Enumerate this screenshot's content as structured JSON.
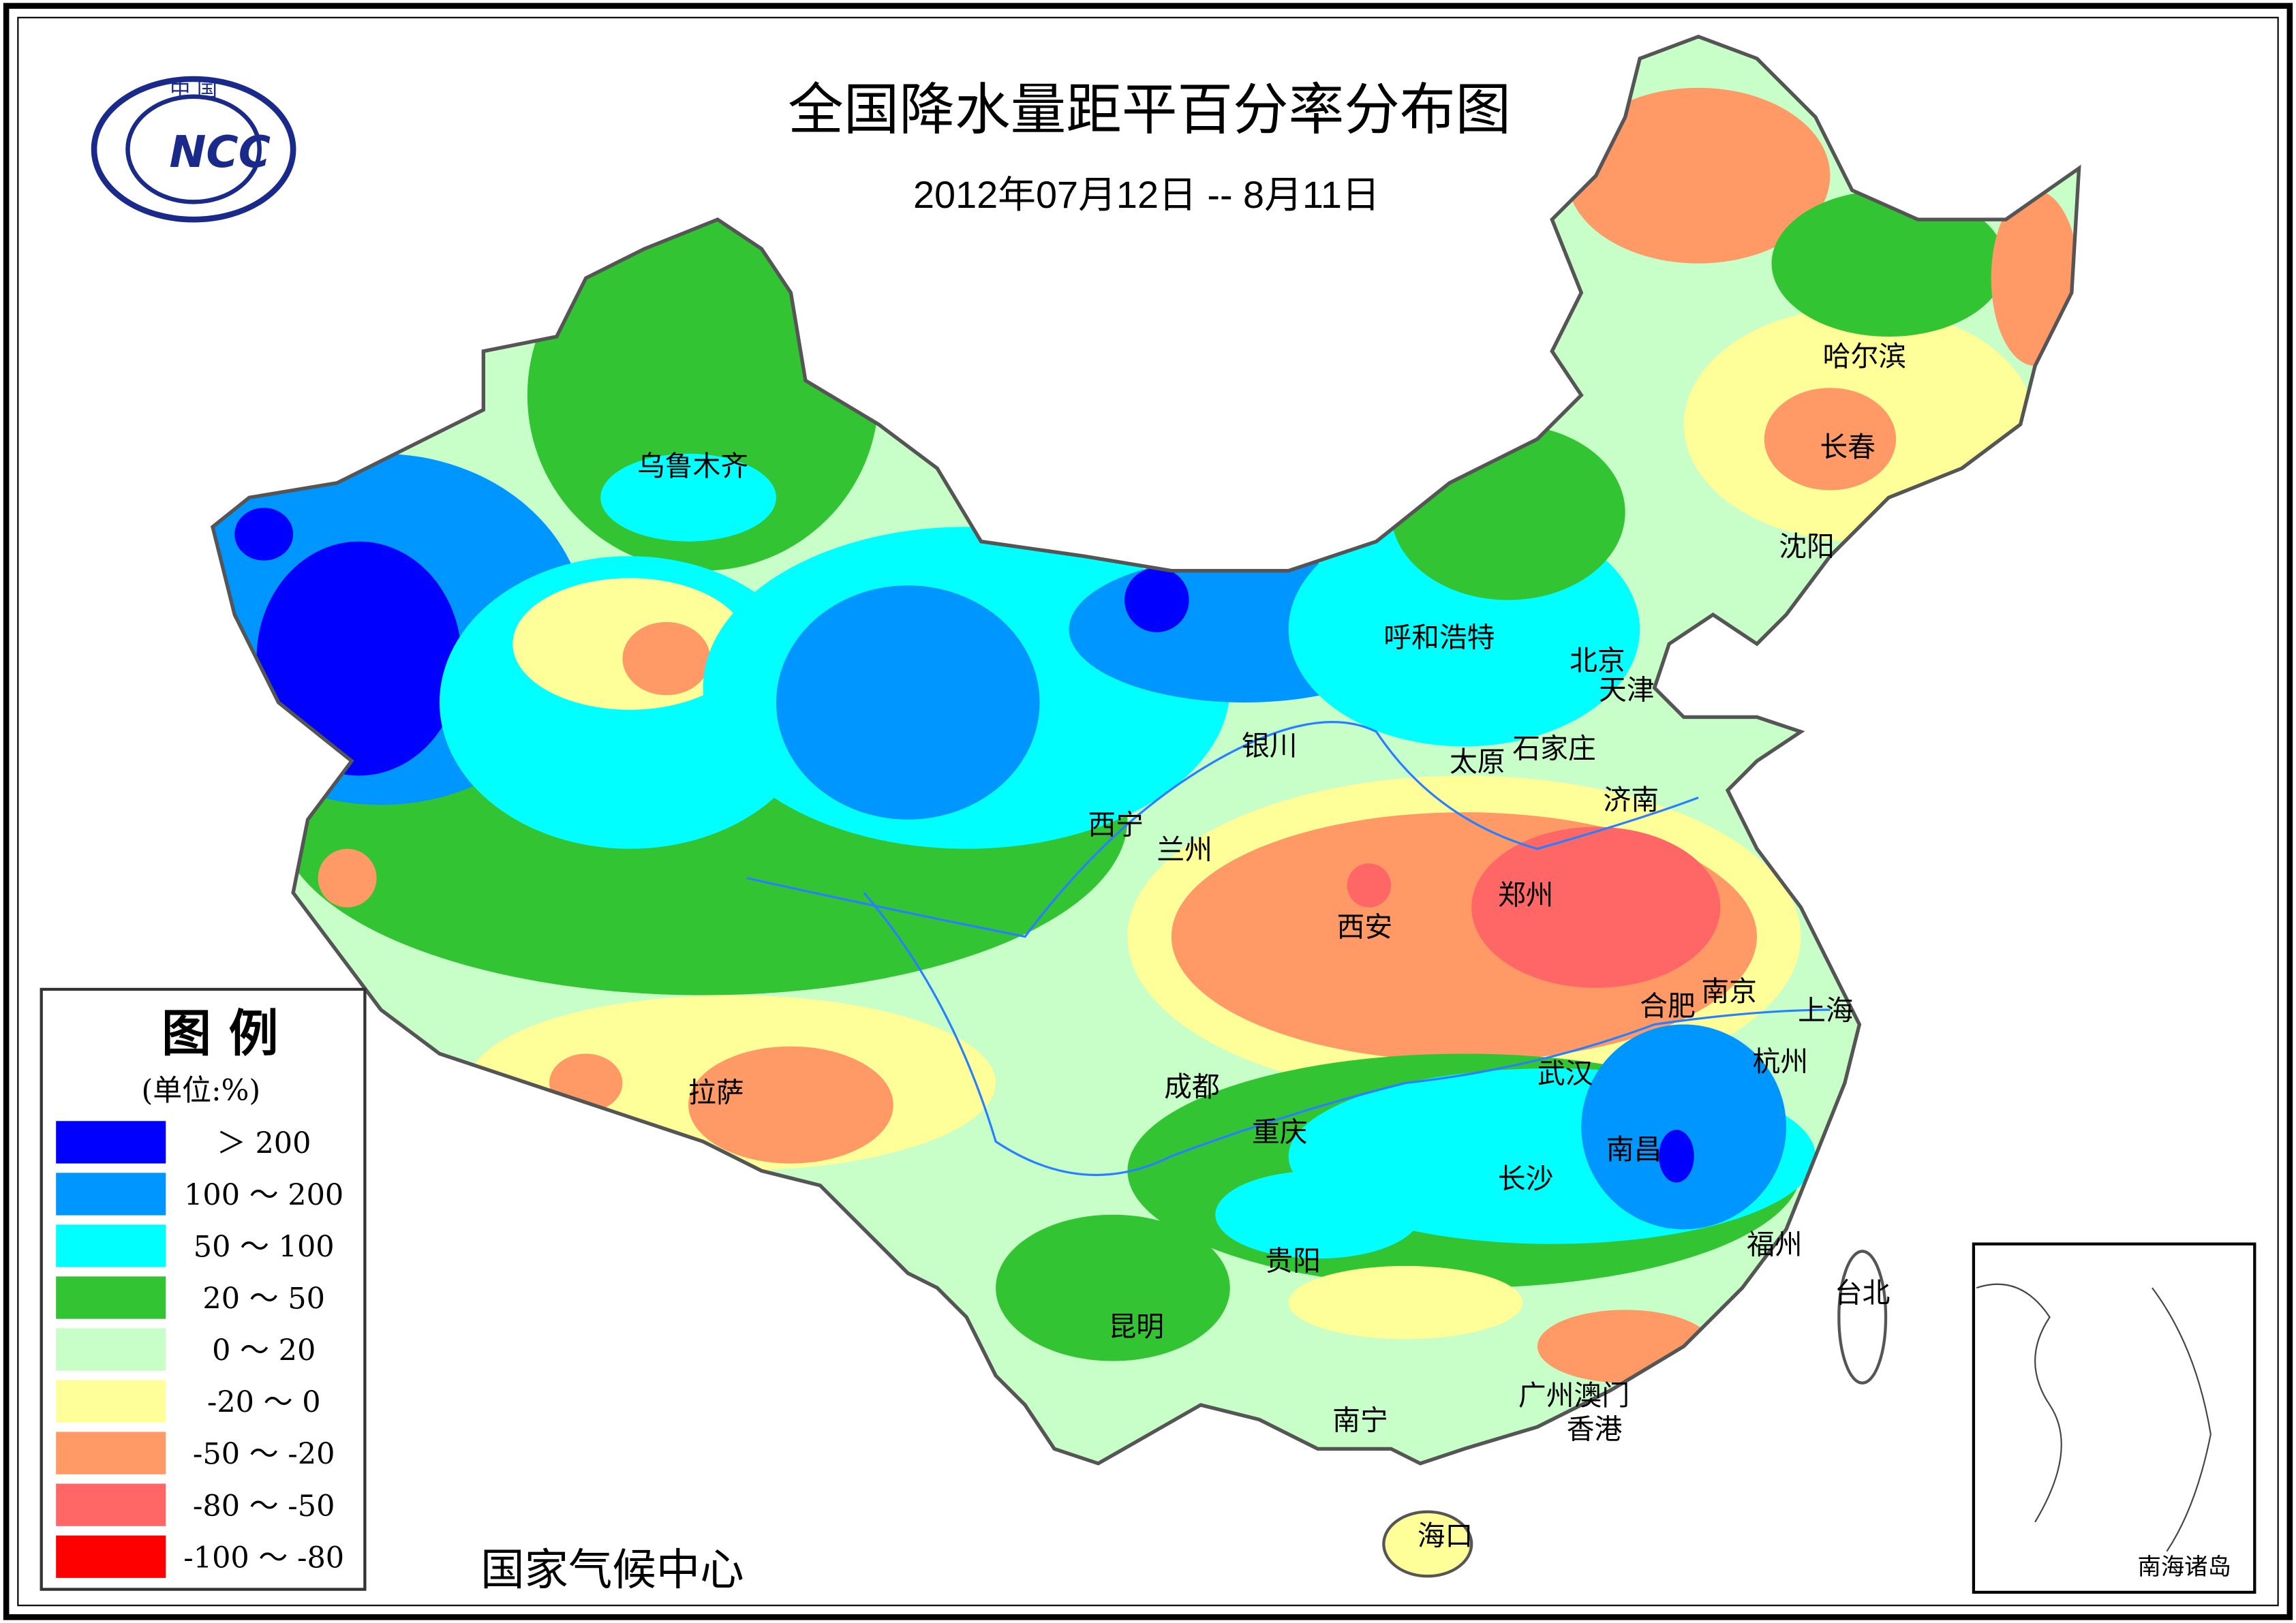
{
  "header": {
    "title": "全国降水量距平百分率分布图",
    "subtitle": "2012年07月12日 -- 8月11日"
  },
  "logo": {
    "top_text": "中 国",
    "abbr": "NCC"
  },
  "legend": {
    "title": "图  例",
    "unit": "(单位:%)",
    "items": [
      {
        "label": "＞ 200",
        "color": "#0000ff"
      },
      {
        "label": "100 ～ 200",
        "color": "#0096ff"
      },
      {
        "label": "50 ～ 100",
        "color": "#00ffff"
      },
      {
        "label": "20 ～ 50",
        "color": "#33c433"
      },
      {
        "label": "0 ～ 20",
        "color": "#c8ffc8"
      },
      {
        "label": "-20 ～ 0",
        "color": "#ffff99"
      },
      {
        "label": "-50 ～ -20",
        "color": "#ff9966"
      },
      {
        "label": "-80 ～ -50",
        "color": "#ff6666"
      },
      {
        "label": "-100 ～ -80",
        "color": "#ff0000"
      }
    ]
  },
  "footer": {
    "agency": "国家气候中心"
  },
  "inset": {
    "label": "南海诸岛"
  },
  "cities": [
    "乌鲁木齐",
    "哈尔滨",
    "长春",
    "沈阳",
    "呼和浩特",
    "北京",
    "天津",
    "银川",
    "太原",
    "石家庄",
    "济南",
    "西宁",
    "兰州",
    "西安",
    "郑州",
    "合肥",
    "南京",
    "上海",
    "杭州",
    "拉萨",
    "成都",
    "武汉",
    "重庆",
    "南昌",
    "长沙",
    "福州",
    "贵阳",
    "台北",
    "昆明",
    "广州",
    "澳门",
    "香港",
    "南宁",
    "海口"
  ]
}
